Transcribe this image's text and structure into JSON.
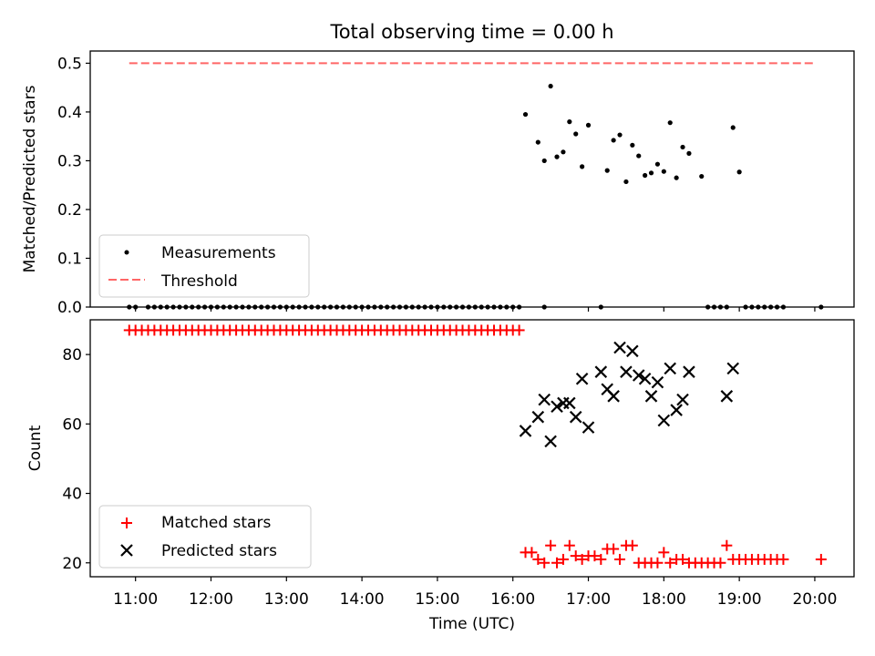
{
  "chart_data": [
    {
      "type": "scatter",
      "title": "Total observing time = 0.00 h",
      "xlabel": "",
      "ylabel": "Matched/Predicted stars",
      "ylim": [
        0,
        0.525
      ],
      "yticks": [
        "0.0",
        "0.1",
        "0.2",
        "0.3",
        "0.4",
        "0.5"
      ],
      "grid": false,
      "legend_position": "lower-left",
      "threshold": {
        "name": "Threshold",
        "value": 0.5,
        "color": "#ff6666",
        "x": [
          "10:55",
          "20:00"
        ]
      },
      "series": [
        {
          "name": "Measurements",
          "color": "#000000",
          "marker": "dot",
          "x": [
            "10:55",
            "11:00",
            "11:10",
            "11:15",
            "11:20",
            "11:25",
            "11:30",
            "11:35",
            "11:40",
            "11:45",
            "11:50",
            "11:55",
            "12:00",
            "12:05",
            "12:10",
            "12:15",
            "12:20",
            "12:25",
            "12:30",
            "12:35",
            "12:40",
            "12:45",
            "12:50",
            "12:55",
            "13:00",
            "13:05",
            "13:10",
            "13:15",
            "13:20",
            "13:25",
            "13:30",
            "13:35",
            "13:40",
            "13:45",
            "13:50",
            "13:55",
            "14:00",
            "14:05",
            "14:10",
            "14:15",
            "14:20",
            "14:25",
            "14:30",
            "14:35",
            "14:40",
            "14:45",
            "14:50",
            "14:55",
            "15:00",
            "15:05",
            "15:10",
            "15:15",
            "15:20",
            "15:25",
            "15:30",
            "15:35",
            "15:40",
            "15:45",
            "15:50",
            "15:55",
            "16:00",
            "16:05",
            "16:10",
            "16:25",
            "16:20",
            "16:25",
            "16:30",
            "16:35",
            "16:40",
            "16:45",
            "16:50",
            "16:55",
            "17:00",
            "17:10",
            "17:15",
            "17:20",
            "17:25",
            "17:30",
            "17:35",
            "17:40",
            "17:45",
            "17:50",
            "17:55",
            "18:00",
            "18:05",
            "18:10",
            "18:15",
            "18:20",
            "18:30",
            "18:35",
            "18:40",
            "18:45",
            "18:50",
            "18:55",
            "19:00",
            "19:05",
            "19:10",
            "19:15",
            "19:20",
            "19:25",
            "19:30",
            "19:35",
            "20:05"
          ],
          "y": [
            0,
            0,
            0,
            0,
            0,
            0,
            0,
            0,
            0,
            0,
            0,
            0,
            0,
            0,
            0,
            0,
            0,
            0,
            0,
            0,
            0,
            0,
            0,
            0,
            0,
            0,
            0,
            0,
            0,
            0,
            0,
            0,
            0,
            0,
            0,
            0,
            0,
            0,
            0,
            0,
            0,
            0,
            0,
            0,
            0,
            0,
            0,
            0,
            0,
            0,
            0,
            0,
            0,
            0,
            0,
            0,
            0,
            0,
            0,
            0,
            0,
            0,
            0.395,
            0,
            0.338,
            0.3,
            0.453,
            0.308,
            0.318,
            0.38,
            0.355,
            0.288,
            0.373,
            0,
            0.28,
            0.342,
            0.353,
            0.257,
            0.332,
            0.31,
            0.27,
            0.275,
            0.293,
            0.278,
            0.378,
            0.265,
            0.328,
            0.315,
            0.268,
            0,
            0,
            0,
            0,
            0.368,
            0.277,
            0,
            0,
            0,
            0,
            0,
            0,
            0,
            0
          ]
        }
      ]
    },
    {
      "type": "scatter",
      "title": "",
      "xlabel": "Time (UTC)",
      "ylabel": "Count",
      "ylim": [
        16,
        90
      ],
      "yticks": [
        "20",
        "40",
        "60",
        "80"
      ],
      "xticks": [
        "11:00",
        "12:00",
        "13:00",
        "14:00",
        "15:00",
        "16:00",
        "17:00",
        "18:00",
        "19:00",
        "20:00"
      ],
      "grid": false,
      "legend_position": "lower-left",
      "series": [
        {
          "name": "Matched stars",
          "color": "#ff0000",
          "marker": "plus",
          "x": [
            "10:55",
            "11:00",
            "11:05",
            "11:10",
            "11:15",
            "11:20",
            "11:25",
            "11:30",
            "11:35",
            "11:40",
            "11:45",
            "11:50",
            "11:55",
            "12:00",
            "12:05",
            "12:10",
            "12:15",
            "12:20",
            "12:25",
            "12:30",
            "12:35",
            "12:40",
            "12:45",
            "12:50",
            "12:55",
            "13:00",
            "13:05",
            "13:10",
            "13:15",
            "13:20",
            "13:25",
            "13:30",
            "13:35",
            "13:40",
            "13:45",
            "13:50",
            "13:55",
            "14:00",
            "14:05",
            "14:10",
            "14:15",
            "14:20",
            "14:25",
            "14:30",
            "14:35",
            "14:40",
            "14:45",
            "14:50",
            "14:55",
            "15:00",
            "15:05",
            "15:10",
            "15:15",
            "15:20",
            "15:25",
            "15:30",
            "15:35",
            "15:40",
            "15:45",
            "15:50",
            "15:55",
            "16:00",
            "16:05",
            "16:10",
            "16:15",
            "16:20",
            "16:25",
            "16:30",
            "16:35",
            "16:40",
            "16:45",
            "16:50",
            "16:55",
            "17:00",
            "17:05",
            "17:10",
            "17:15",
            "17:20",
            "17:25",
            "17:30",
            "17:35",
            "17:40",
            "17:45",
            "17:50",
            "17:55",
            "18:00",
            "18:05",
            "18:10",
            "18:15",
            "18:20",
            "18:25",
            "18:30",
            "18:35",
            "18:40",
            "18:45",
            "18:50",
            "18:55",
            "19:00",
            "19:05",
            "19:10",
            "19:15",
            "19:20",
            "19:25",
            "19:30",
            "19:35",
            "20:05"
          ],
          "y": [
            87,
            87,
            87,
            87,
            87,
            87,
            87,
            87,
            87,
            87,
            87,
            87,
            87,
            87,
            87,
            87,
            87,
            87,
            87,
            87,
            87,
            87,
            87,
            87,
            87,
            87,
            87,
            87,
            87,
            87,
            87,
            87,
            87,
            87,
            87,
            87,
            87,
            87,
            87,
            87,
            87,
            87,
            87,
            87,
            87,
            87,
            87,
            87,
            87,
            87,
            87,
            87,
            87,
            87,
            87,
            87,
            87,
            87,
            87,
            87,
            87,
            87,
            87,
            23,
            23,
            21,
            20,
            25,
            20,
            21,
            25,
            22,
            21,
            22,
            22,
            21,
            24,
            24,
            21,
            25,
            25,
            20,
            20,
            20,
            20,
            23,
            20,
            21,
            21,
            20,
            20,
            20,
            20,
            20,
            20,
            25,
            21,
            21,
            21,
            21,
            21,
            21,
            21,
            21,
            21,
            21
          ]
        },
        {
          "name": "Predicted stars",
          "color": "#000000",
          "marker": "x",
          "x": [
            "16:10",
            "16:20",
            "16:25",
            "16:30",
            "16:35",
            "16:40",
            "16:45",
            "16:50",
            "16:55",
            "17:00",
            "17:10",
            "17:15",
            "17:20",
            "17:25",
            "17:30",
            "17:35",
            "17:40",
            "17:45",
            "17:50",
            "17:55",
            "18:00",
            "18:05",
            "18:10",
            "18:15",
            "18:20",
            "18:50",
            "18:55"
          ],
          "y": [
            58,
            62,
            67,
            55,
            65,
            66,
            66,
            62,
            73,
            59,
            75,
            70,
            68,
            82,
            75,
            81,
            74,
            73,
            68,
            72,
            61,
            76,
            64,
            67,
            75,
            68,
            76
          ]
        }
      ]
    }
  ]
}
